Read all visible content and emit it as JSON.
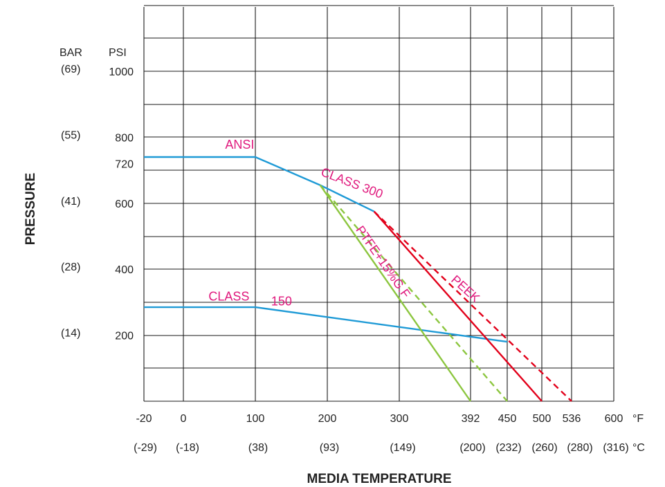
{
  "chart_data": {
    "type": "line",
    "xlabel": "MEDIA TEMPERATURE",
    "ylabel": "PRESSURE",
    "x_unit": "°F",
    "x_unit_secondary": "°C",
    "y_units": [
      "BAR",
      "PSI"
    ],
    "xlim": [
      -20,
      600
    ],
    "ylim": [
      0,
      1200
    ],
    "grid": true,
    "x_ticks": [
      {
        "f": -20,
        "label": "-20",
        "c_label": "(-29)"
      },
      {
        "f": 0,
        "label": "0",
        "c_label": "(-18)"
      },
      {
        "f": 100,
        "label": "100",
        "c_label": "(38)"
      },
      {
        "f": 200,
        "label": "200",
        "c_label": "(93)"
      },
      {
        "f": 300,
        "label": "300",
        "c_label": "(149)"
      },
      {
        "f": 392,
        "label": "392",
        "c_label": "(200)"
      },
      {
        "f": 450,
        "label": "450",
        "c_label": "(232)"
      },
      {
        "f": 500,
        "label": "500",
        "c_label": "(260)"
      },
      {
        "f": 536,
        "label": "536",
        "c_label": "(280)"
      },
      {
        "f": 600,
        "label": "600",
        "c_label": "(316)"
      }
    ],
    "y_ticks": [
      {
        "psi": 1000,
        "label": "1000",
        "bar_label": "(69)"
      },
      {
        "psi": 800,
        "label": "800",
        "bar_label": "(55)"
      },
      {
        "psi": 720,
        "label": "720",
        "bar_label": ""
      },
      {
        "psi": 600,
        "label": "600",
        "bar_label": "(41)"
      },
      {
        "psi": 400,
        "label": "400",
        "bar_label": "(28)"
      },
      {
        "psi": 200,
        "label": "200",
        "bar_label": "(14)"
      }
    ],
    "series": [
      {
        "name": "ANSI CLASS 300",
        "color": "#1e9ad6",
        "dash": false,
        "x": [
          -20,
          100,
          190,
          265
        ],
        "y": [
          740,
          740,
          655,
          575
        ]
      },
      {
        "name": "CLASS 150",
        "color": "#1e9ad6",
        "dash": false,
        "x": [
          -20,
          100,
          450
        ],
        "y": [
          285,
          285,
          180
        ]
      },
      {
        "color": "#8cc63f",
        "dash": false,
        "x": [
          190,
          392
        ],
        "y": [
          655,
          0
        ]
      },
      {
        "color": "#8cc63f",
        "dash": true,
        "x": [
          190,
          450
        ],
        "y": [
          655,
          0
        ]
      },
      {
        "color": "#e2001a",
        "dash": false,
        "x": [
          265,
          500
        ],
        "y": [
          575,
          0
        ]
      },
      {
        "color": "#e2001a",
        "dash": true,
        "x": [
          265,
          536
        ],
        "y": [
          575,
          0
        ]
      }
    ],
    "annotations": [
      {
        "text": "ANSI",
        "x": 58,
        "y": 765,
        "rotate": 0
      },
      {
        "text": "CLASS 300",
        "x": 190,
        "y": 685,
        "rotate": 21
      },
      {
        "text": "CLASS",
        "x": 35,
        "y": 305,
        "rotate": 0
      },
      {
        "text": "150",
        "x": 122,
        "y": 290,
        "rotate": 0
      },
      {
        "text": "PEEK",
        "x": 366,
        "y": 365,
        "rotate": 42
      },
      {
        "text": "PTFE+15%G.F",
        "x": 239,
        "y": 520,
        "rotate": 55
      }
    ]
  }
}
